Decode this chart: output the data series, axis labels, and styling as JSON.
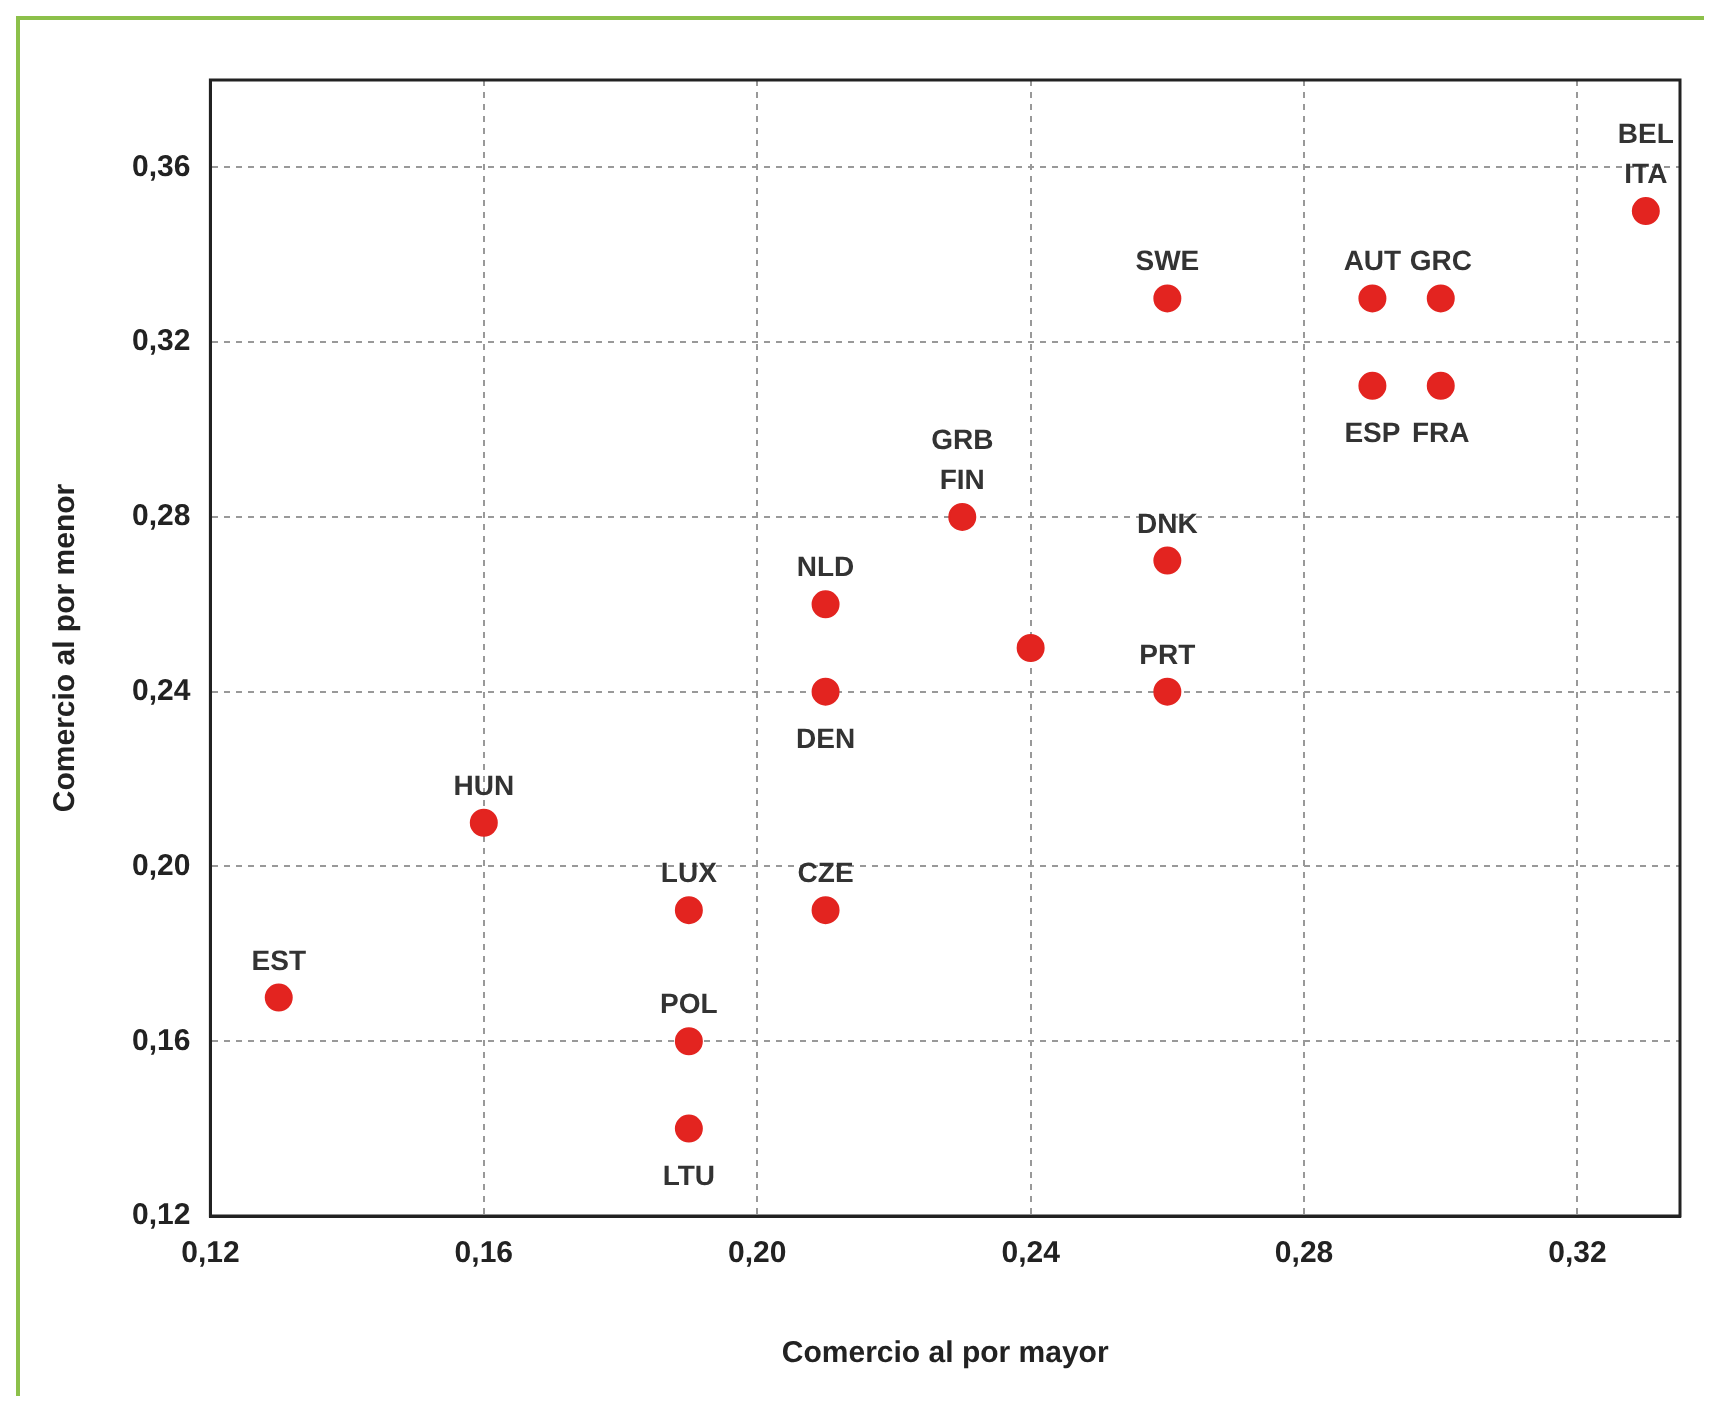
{
  "chart_data": {
    "type": "scatter",
    "xlabel": "Comercio al por mayor",
    "ylabel": "Comercio al por menor",
    "x": [
      0.13,
      0.16,
      0.19,
      0.19,
      0.19,
      0.21,
      0.21,
      0.21,
      0.23,
      0.24,
      0.26,
      0.26,
      0.26,
      0.29,
      0.3,
      0.29,
      0.3,
      0.33
    ],
    "series": [
      {
        "color": "#e32420",
        "values": [
          0.17,
          0.21,
          0.19,
          0.16,
          0.14,
          0.19,
          0.24,
          0.26,
          0.28,
          0.25,
          0.27,
          0.24,
          0.33,
          0.33,
          0.33,
          0.31,
          0.31,
          0.35
        ]
      }
    ],
    "marker": "circle",
    "grid": true,
    "legend": false,
    "xlim": [
      0.12,
      0.335
    ],
    "ylim": [
      0.12,
      0.38
    ],
    "xticks": [
      {
        "value": 0.12,
        "label": "0,12"
      },
      {
        "value": 0.16,
        "label": "0,16"
      },
      {
        "value": 0.2,
        "label": "0,20"
      },
      {
        "value": 0.24,
        "label": "0,24"
      },
      {
        "value": 0.28,
        "label": "0,28"
      },
      {
        "value": 0.32,
        "label": "0,32"
      }
    ],
    "yticks": [
      {
        "value": 0.12,
        "label": "0,12"
      },
      {
        "value": 0.16,
        "label": "0,16"
      },
      {
        "value": 0.2,
        "label": "0,20"
      },
      {
        "value": 0.24,
        "label": "0,24"
      },
      {
        "value": 0.28,
        "label": "0,28"
      },
      {
        "value": 0.32,
        "label": "0,32"
      },
      {
        "value": 0.36,
        "label": "0,36"
      }
    ],
    "annotations": [
      {
        "text": "EST",
        "x": 0.13,
        "y": 0.17
      },
      {
        "text": "HUN",
        "x": 0.16,
        "y": 0.21
      },
      {
        "text": "LUX",
        "x": 0.19,
        "y": 0.19
      },
      {
        "text": "POL",
        "x": 0.19,
        "y": 0.16
      },
      {
        "text": "LTU",
        "x": 0.19,
        "y": 0.14
      },
      {
        "text": "CZE",
        "x": 0.21,
        "y": 0.19
      },
      {
        "text": "DEN",
        "x": 0.21,
        "y": 0.24
      },
      {
        "text": "NLD",
        "x": 0.21,
        "y": 0.26
      },
      {
        "text": "GRB\nFIN",
        "x": 0.23,
        "y": 0.28
      },
      {
        "text": "DNK",
        "x": 0.26,
        "y": 0.27
      },
      {
        "text": "PRT",
        "x": 0.26,
        "y": 0.24
      },
      {
        "text": "SWE",
        "x": 0.26,
        "y": 0.33
      },
      {
        "text": "AUT",
        "x": 0.29,
        "y": 0.33
      },
      {
        "text": "GRC",
        "x": 0.3,
        "y": 0.33
      },
      {
        "text": "ESP",
        "x": 0.29,
        "y": 0.31
      },
      {
        "text": "FRA",
        "x": 0.3,
        "y": 0.31
      },
      {
        "text": "BEL\nITA",
        "x": 0.33,
        "y": 0.35
      }
    ]
  }
}
